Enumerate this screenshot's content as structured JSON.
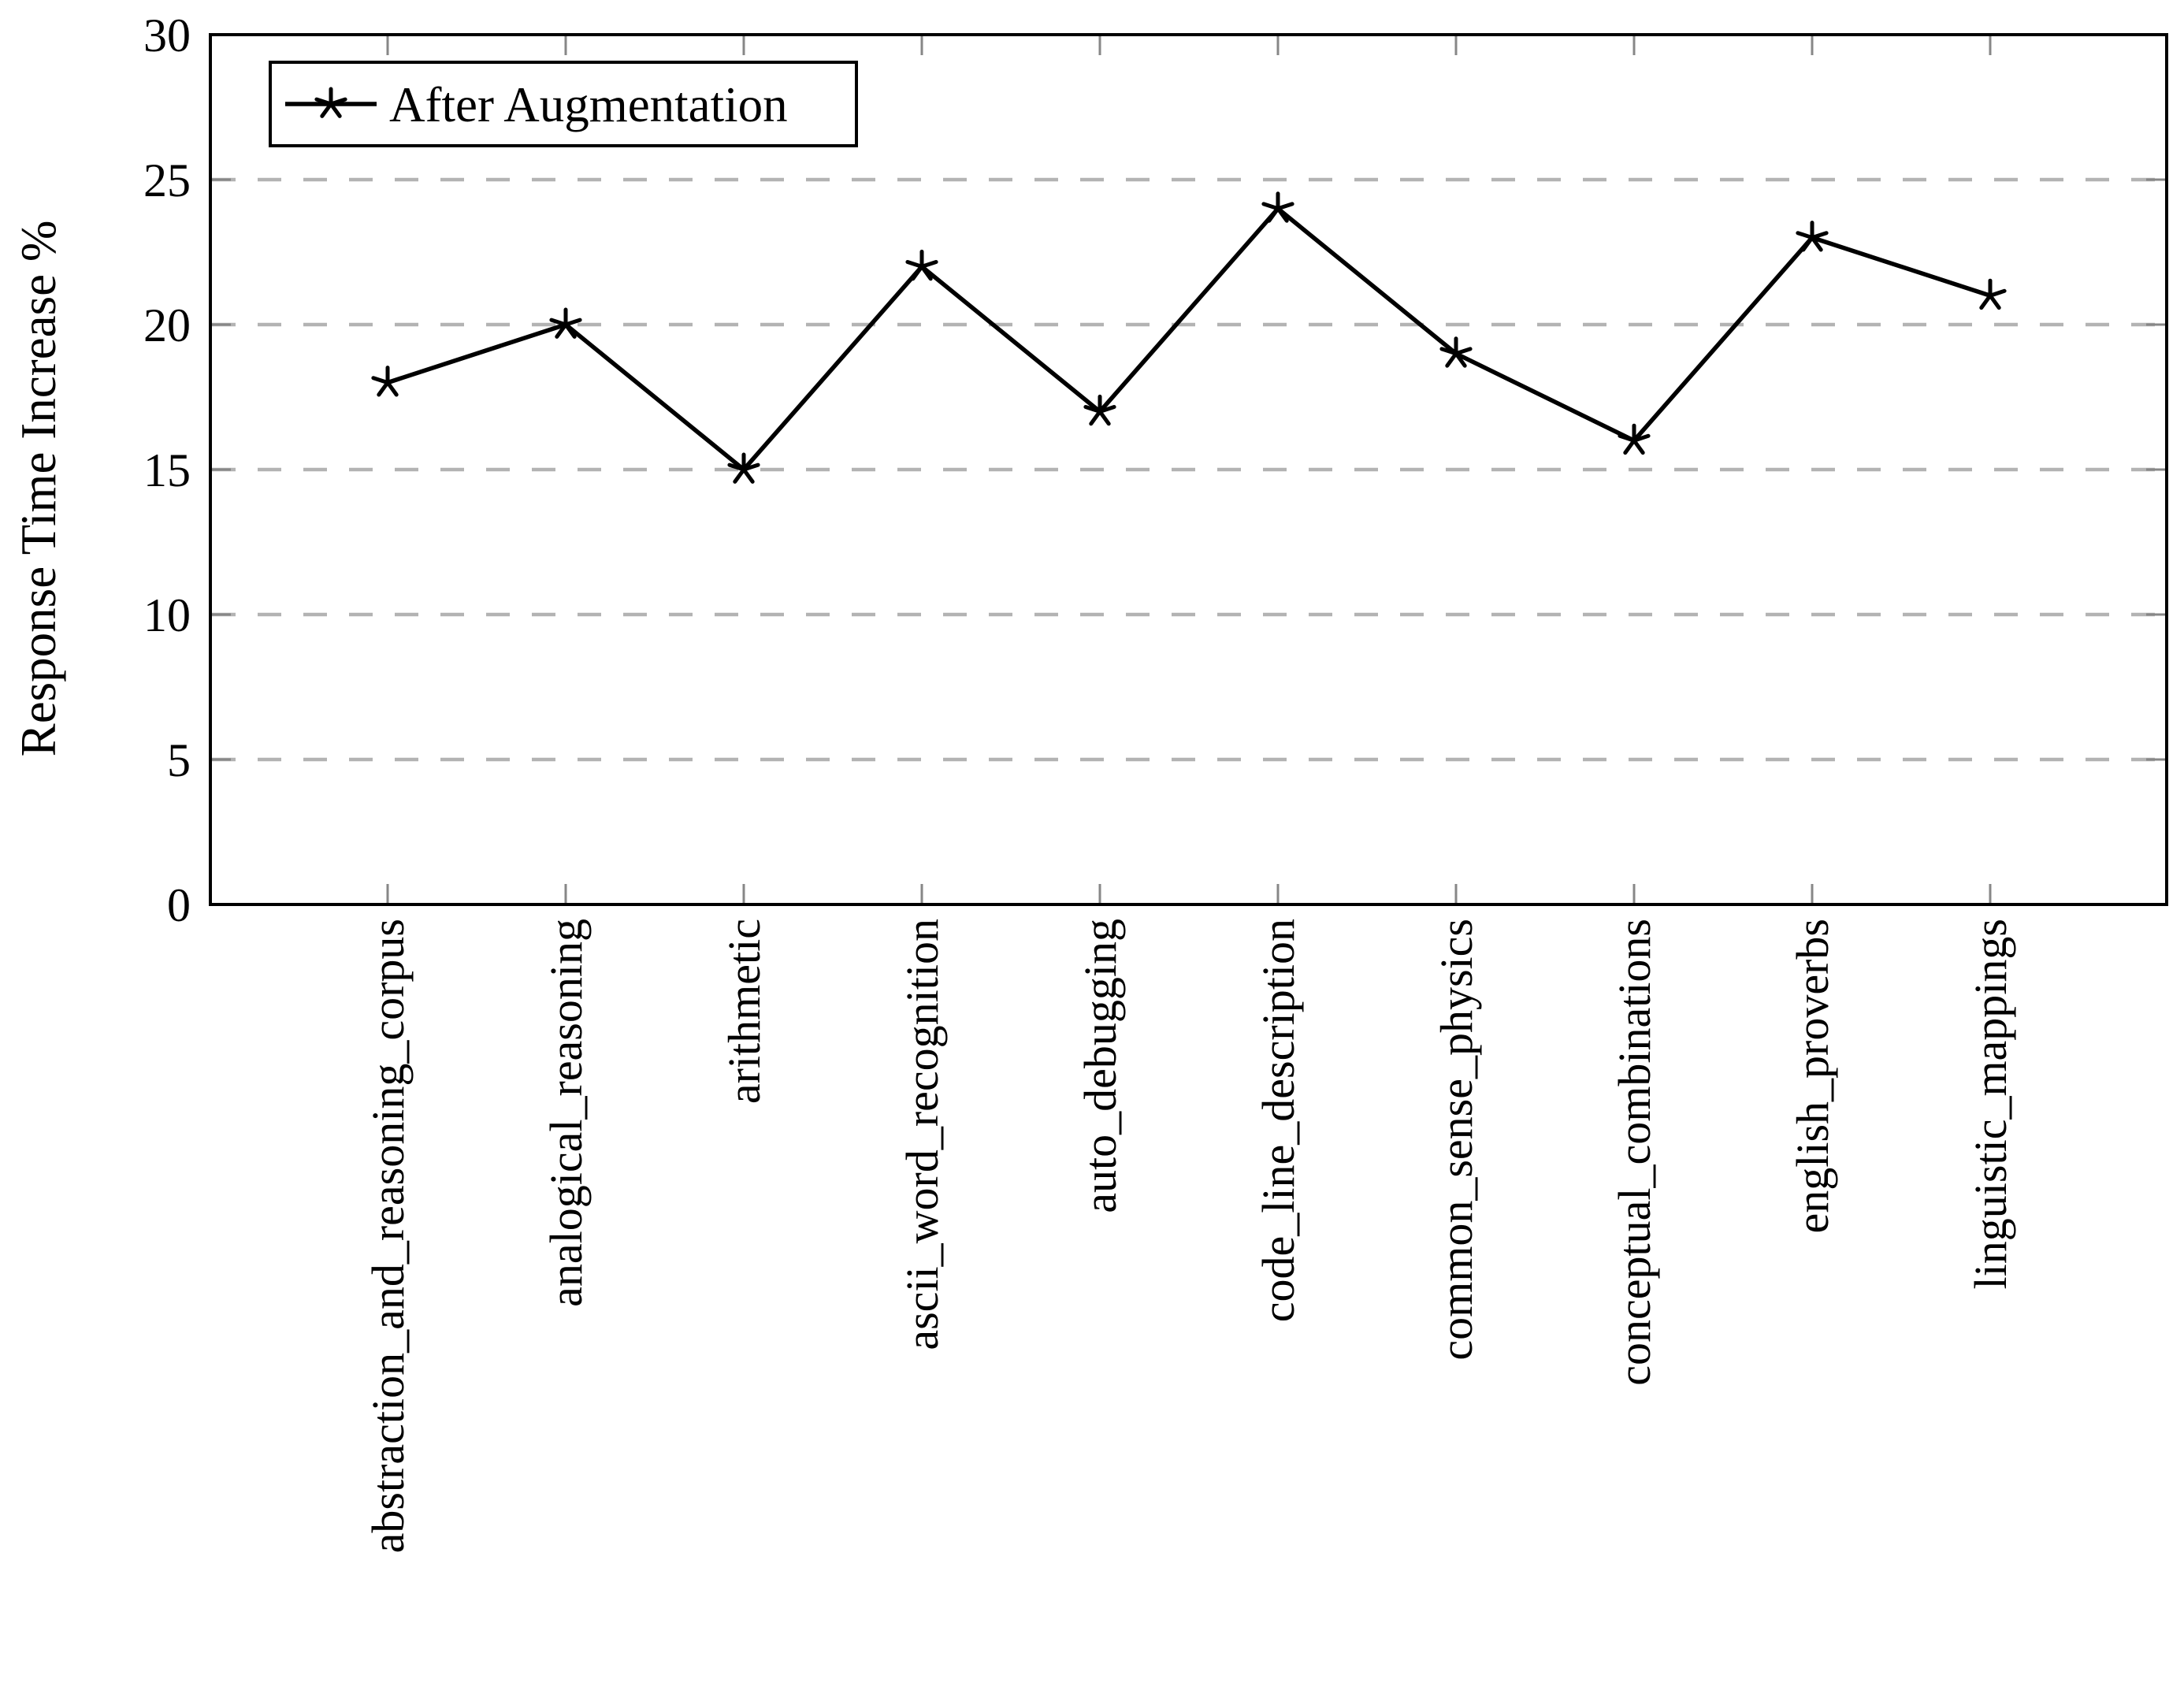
{
  "chart_data": {
    "type": "line",
    "title": "",
    "xlabel": "",
    "ylabel": "Response Time Increase %",
    "ylim": [
      0,
      30
    ],
    "yticks": [
      0,
      5,
      10,
      15,
      20,
      25,
      30
    ],
    "grid": "horizontal-dashed",
    "legend_position": "top-left",
    "categories": [
      "abstraction_and_reasoning_corpus",
      "analogical_reasoning",
      "arithmetic",
      "ascii_word_recognition",
      "auto_debugging",
      "code_line_description",
      "common_sense_physics",
      "conceptual_combinations",
      "english_proverbs",
      "linguistic_mappings"
    ],
    "series": [
      {
        "name": "After Augmentation",
        "marker": "star",
        "color": "#000000",
        "values": [
          18,
          20,
          15,
          22,
          17,
          24,
          19,
          16,
          23,
          21
        ]
      }
    ],
    "colors": {
      "background": "#ffffff",
      "line": "#000000",
      "gridline": "#b3b3b3",
      "tick_mark": "#878787",
      "axis_border": "#000000",
      "text": "#000000"
    }
  },
  "legend": {
    "label": "After Augmentation"
  },
  "axes": {
    "y_label": "Response Time Increase %"
  }
}
